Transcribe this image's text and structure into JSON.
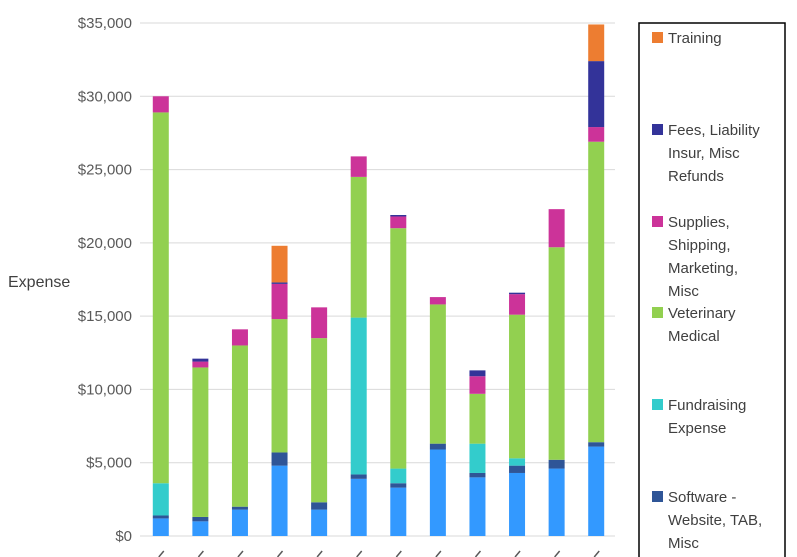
{
  "chart_data": {
    "type": "bar",
    "stacked": true,
    "ylabel": "Expense",
    "ylim": [
      0,
      35000
    ],
    "yticks": [
      "$0",
      "$5,000",
      "$10,000",
      "$15,000",
      "$20,000",
      "$25,000",
      "$30,000",
      "$35,000"
    ],
    "grid": true,
    "legend_position": "right",
    "categories": [
      "",
      "",
      "",
      "",
      "",
      "",
      "",
      "",
      "",
      "",
      "",
      ""
    ],
    "series": [
      {
        "name": "",
        "color": "#3399ff",
        "values": [
          1200,
          1000,
          1800,
          4800,
          1800,
          3900,
          3300,
          5900,
          4000,
          4300,
          4600,
          6100
        ]
      },
      {
        "name": "Software - Website, TAB, Misc",
        "color": "#2f5597",
        "values": [
          200,
          300,
          200,
          900,
          500,
          300,
          300,
          400,
          300,
          500,
          600,
          300
        ]
      },
      {
        "name": "Fundraising Expense",
        "color": "#33cccc",
        "values": [
          2200,
          0,
          0,
          0,
          0,
          10700,
          1000,
          0,
          2000,
          500,
          0,
          0
        ]
      },
      {
        "name": "Veterinary Medical",
        "color": "#92d050",
        "values": [
          25300,
          10200,
          11000,
          9100,
          11200,
          9600,
          16400,
          9500,
          3400,
          9800,
          14500,
          20500
        ]
      },
      {
        "name": "Supplies, Shipping, Marketing, Misc",
        "color": "#cc3399",
        "values": [
          1100,
          400,
          1100,
          2400,
          2100,
          1400,
          800,
          500,
          1200,
          1400,
          2600,
          1000
        ]
      },
      {
        "name": "Fees, Liability Insur, Misc Refunds",
        "color": "#333399",
        "values": [
          0,
          200,
          0,
          100,
          0,
          0,
          100,
          0,
          400,
          100,
          0,
          4500
        ]
      },
      {
        "name": "Training",
        "color": "#ed7d31",
        "values": [
          0,
          0,
          0,
          2500,
          0,
          0,
          0,
          0,
          0,
          0,
          0,
          2500
        ]
      }
    ],
    "legend": [
      {
        "label_lines": [
          "Training"
        ],
        "color": "#ed7d31"
      },
      {
        "label_lines": [
          "Fees, Liability",
          "Insur, Misc",
          "Refunds"
        ],
        "color": "#333399"
      },
      {
        "label_lines": [
          "Supplies,",
          "Shipping,",
          "Marketing,",
          "Misc"
        ],
        "color": "#cc3399"
      },
      {
        "label_lines": [
          "Veterinary",
          "Medical"
        ],
        "color": "#92d050"
      },
      {
        "label_lines": [
          "Fundraising",
          "Expense"
        ],
        "color": "#33cccc"
      },
      {
        "label_lines": [
          "Software -",
          "Website, TAB,",
          "Misc"
        ],
        "color": "#2f5597"
      }
    ]
  }
}
